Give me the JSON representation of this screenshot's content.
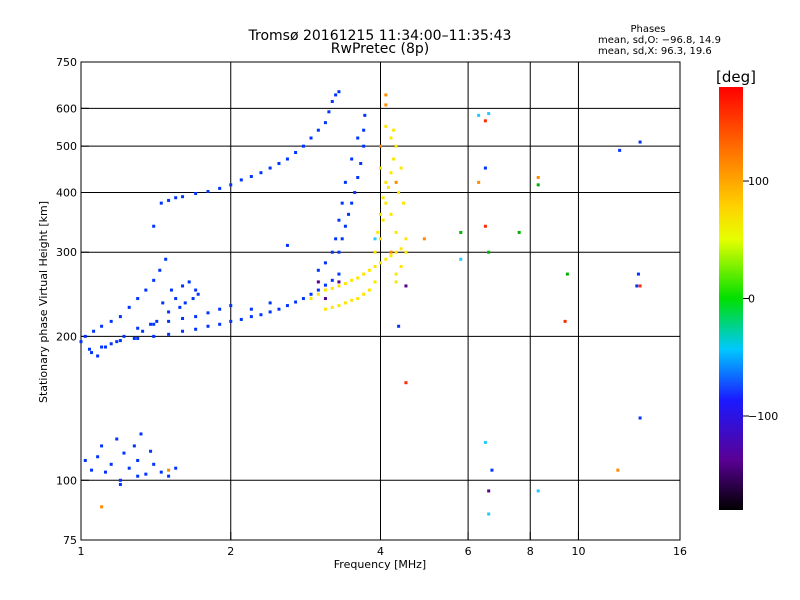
{
  "chart_data": {
    "type": "scatter",
    "title": "Tromsø 20161215 11:34:00–11:35:43",
    "subtitle": "RwPretec (8p)",
    "xlabel": "Frequency [MHz]",
    "ylabel": "Stationary phase Virtual Height [km]",
    "x_scale": "log",
    "y_scale": "log",
    "xlim": [
      1,
      16
    ],
    "ylim": [
      75,
      750
    ],
    "x_ticks": [
      1,
      2,
      4,
      6,
      8,
      10,
      16
    ],
    "x_tick_labels": [
      "1",
      "2",
      "4",
      "6",
      "8",
      "10",
      "16"
    ],
    "x_gridlines": [
      2,
      4,
      6,
      8,
      10
    ],
    "y_ticks": [
      75,
      100,
      200,
      300,
      400,
      500,
      600,
      750
    ],
    "y_tick_labels": [
      "75",
      "100",
      "200",
      "300",
      "400",
      "500",
      "600",
      "750"
    ],
    "y_gridlines": [
      100,
      200,
      300,
      400,
      500,
      600
    ],
    "grid": true,
    "phase_legend": {
      "title": "Phases",
      "line_o": "mean, sd,O: −96.8, 14.9",
      "line_x": "mean, sd,X:  96.3, 19.6"
    },
    "colorbar": {
      "label": "[deg]",
      "range": [
        -180,
        180
      ],
      "ticks": [
        100,
        0,
        -100
      ],
      "tick_labels": [
        "100",
        "0",
        "−100"
      ],
      "colormap": "rainbow (black-purple-blue-cyan-green-yellow-orange-red)"
    },
    "series": [
      {
        "color": "#0033ff",
        "phase_deg": -100,
        "points": [
          [
            1.0,
            195
          ],
          [
            1.02,
            200
          ],
          [
            1.04,
            188
          ],
          [
            1.06,
            205
          ],
          [
            1.08,
            182
          ],
          [
            1.1,
            210
          ],
          [
            1.12,
            190
          ],
          [
            1.15,
            215
          ],
          [
            1.18,
            195
          ],
          [
            1.2,
            220
          ],
          [
            1.22,
            200
          ],
          [
            1.25,
            230
          ],
          [
            1.28,
            198
          ],
          [
            1.3,
            240
          ],
          [
            1.33,
            205
          ],
          [
            1.35,
            250
          ],
          [
            1.38,
            212
          ],
          [
            1.4,
            262
          ],
          [
            1.42,
            215
          ],
          [
            1.44,
            275
          ],
          [
            1.46,
            235
          ],
          [
            1.48,
            290
          ],
          [
            1.5,
            225
          ],
          [
            1.52,
            250
          ],
          [
            1.55,
            240
          ],
          [
            1.58,
            230
          ],
          [
            1.6,
            255
          ],
          [
            1.62,
            235
          ],
          [
            1.65,
            260
          ],
          [
            1.68,
            240
          ],
          [
            1.7,
            250
          ],
          [
            1.72,
            245
          ],
          [
            1.05,
            185
          ],
          [
            1.1,
            190
          ],
          [
            1.15,
            193
          ],
          [
            1.2,
            196
          ],
          [
            1.3,
            198
          ],
          [
            1.4,
            200
          ],
          [
            1.5,
            202
          ],
          [
            1.6,
            205
          ],
          [
            1.7,
            207
          ],
          [
            1.8,
            210
          ],
          [
            1.9,
            212
          ],
          [
            2.0,
            215
          ],
          [
            2.1,
            217
          ],
          [
            2.2,
            220
          ],
          [
            2.3,
            222
          ],
          [
            2.4,
            225
          ],
          [
            2.5,
            228
          ],
          [
            2.6,
            232
          ],
          [
            2.7,
            236
          ],
          [
            2.8,
            240
          ],
          [
            2.9,
            245
          ],
          [
            3.0,
            250
          ],
          [
            3.1,
            256
          ],
          [
            3.2,
            262
          ],
          [
            3.3,
            270
          ],
          [
            1.3,
            208
          ],
          [
            1.4,
            212
          ],
          [
            1.5,
            215
          ],
          [
            1.6,
            218
          ],
          [
            1.7,
            220
          ],
          [
            1.8,
            224
          ],
          [
            1.9,
            228
          ],
          [
            2.0,
            232
          ],
          [
            2.2,
            228
          ],
          [
            2.4,
            235
          ],
          [
            1.45,
            380
          ],
          [
            1.5,
            385
          ],
          [
            1.55,
            390
          ],
          [
            1.6,
            392
          ],
          [
            1.7,
            398
          ],
          [
            1.8,
            402
          ],
          [
            1.9,
            408
          ],
          [
            2.0,
            415
          ],
          [
            2.1,
            425
          ],
          [
            2.2,
            432
          ],
          [
            2.3,
            440
          ],
          [
            2.4,
            450
          ],
          [
            2.5,
            460
          ],
          [
            2.6,
            470
          ],
          [
            2.7,
            485
          ],
          [
            2.8,
            500
          ],
          [
            2.9,
            520
          ],
          [
            3.0,
            540
          ],
          [
            3.1,
            560
          ],
          [
            3.15,
            590
          ],
          [
            3.2,
            620
          ],
          [
            3.25,
            640
          ],
          [
            3.3,
            650
          ],
          [
            3.3,
            300
          ],
          [
            3.35,
            320
          ],
          [
            3.4,
            340
          ],
          [
            3.45,
            360
          ],
          [
            3.5,
            380
          ],
          [
            3.55,
            400
          ],
          [
            3.6,
            430
          ],
          [
            3.65,
            460
          ],
          [
            3.7,
            500
          ],
          [
            3.7,
            540
          ],
          [
            3.72,
            580
          ],
          [
            3.6,
            520
          ],
          [
            3.5,
            470
          ],
          [
            3.4,
            420
          ],
          [
            3.35,
            380
          ],
          [
            3.3,
            350
          ],
          [
            3.25,
            320
          ],
          [
            3.2,
            300
          ],
          [
            3.1,
            285
          ],
          [
            3.0,
            275
          ],
          [
            1.02,
            110
          ],
          [
            1.05,
            105
          ],
          [
            1.08,
            112
          ],
          [
            1.1,
            118
          ],
          [
            1.12,
            104
          ],
          [
            1.15,
            108
          ],
          [
            1.18,
            122
          ],
          [
            1.2,
            100
          ],
          [
            1.22,
            114
          ],
          [
            1.25,
            106
          ],
          [
            1.28,
            118
          ],
          [
            1.3,
            110
          ],
          [
            1.32,
            125
          ],
          [
            1.35,
            103
          ],
          [
            1.38,
            115
          ],
          [
            1.4,
            108
          ],
          [
            1.45,
            104
          ],
          [
            1.5,
            102
          ],
          [
            1.55,
            106
          ],
          [
            1.3,
            102
          ],
          [
            1.2,
            98
          ],
          [
            1.4,
            340
          ],
          [
            2.6,
            310
          ],
          [
            12.1,
            490
          ],
          [
            13.3,
            510
          ],
          [
            13.2,
            270
          ],
          [
            13.3,
            135
          ],
          [
            6.7,
            105
          ],
          [
            6.5,
            450
          ],
          [
            13.1,
            255
          ],
          [
            4.35,
            210
          ]
        ]
      },
      {
        "color": "#ffe600",
        "phase_deg": 110,
        "points": [
          [
            2.9,
            240
          ],
          [
            3.0,
            245
          ],
          [
            3.1,
            250
          ],
          [
            3.2,
            252
          ],
          [
            3.3,
            255
          ],
          [
            3.4,
            258
          ],
          [
            3.5,
            262
          ],
          [
            3.6,
            265
          ],
          [
            3.7,
            270
          ],
          [
            3.8,
            275
          ],
          [
            3.9,
            280
          ],
          [
            4.0,
            285
          ],
          [
            4.1,
            290
          ],
          [
            4.2,
            295
          ],
          [
            4.3,
            300
          ],
          [
            4.4,
            305
          ],
          [
            4.0,
            320
          ],
          [
            4.05,
            350
          ],
          [
            4.1,
            380
          ],
          [
            4.15,
            410
          ],
          [
            4.2,
            440
          ],
          [
            4.25,
            470
          ],
          [
            4.3,
            500
          ],
          [
            4.2,
            360
          ],
          [
            4.3,
            330
          ],
          [
            4.35,
            400
          ],
          [
            4.4,
            450
          ],
          [
            4.45,
            380
          ],
          [
            4.5,
            320
          ],
          [
            4.5,
            300
          ],
          [
            4.4,
            280
          ],
          [
            4.3,
            270
          ],
          [
            3.9,
            300
          ],
          [
            3.95,
            330
          ],
          [
            4.0,
            360
          ],
          [
            4.05,
            390
          ],
          [
            4.1,
            420
          ],
          [
            3.9,
            260
          ],
          [
            3.8,
            250
          ],
          [
            3.7,
            245
          ],
          [
            3.6,
            240
          ],
          [
            3.5,
            238
          ],
          [
            3.4,
            235
          ],
          [
            3.3,
            232
          ],
          [
            3.2,
            230
          ],
          [
            3.1,
            228
          ],
          [
            4.2,
            520
          ],
          [
            4.25,
            540
          ],
          [
            4.1,
            550
          ],
          [
            4.0,
            450
          ],
          [
            4.3,
            260
          ]
        ]
      },
      {
        "color": "#ff8a00",
        "phase_deg": 150,
        "points": [
          [
            4.1,
            640
          ],
          [
            4.1,
            610
          ],
          [
            4.0,
            500
          ],
          [
            4.2,
            300
          ],
          [
            4.3,
            420
          ],
          [
            8.3,
            430
          ],
          [
            6.3,
            420
          ],
          [
            12.0,
            105
          ],
          [
            4.9,
            320
          ],
          [
            1.1,
            88
          ],
          [
            1.5,
            105
          ]
        ]
      },
      {
        "color": "#ff2a00",
        "phase_deg": 175,
        "points": [
          [
            6.5,
            565
          ],
          [
            6.5,
            340
          ],
          [
            4.5,
            160
          ],
          [
            9.4,
            215
          ],
          [
            13.3,
            255
          ]
        ]
      },
      {
        "color": "#00b000",
        "phase_deg": 20,
        "points": [
          [
            8.3,
            415
          ],
          [
            9.5,
            270
          ],
          [
            6.6,
            300
          ],
          [
            7.6,
            330
          ],
          [
            5.8,
            330
          ]
        ]
      },
      {
        "color": "#22c8ff",
        "phase_deg": -40,
        "points": [
          [
            6.6,
            85
          ],
          [
            8.3,
            95
          ],
          [
            6.5,
            120
          ],
          [
            6.3,
            580
          ],
          [
            6.6,
            585
          ],
          [
            3.9,
            320
          ],
          [
            5.8,
            290
          ]
        ]
      },
      {
        "color": "#550088",
        "phase_deg": -140,
        "points": [
          [
            4.5,
            255
          ],
          [
            3.1,
            240
          ],
          [
            3.3,
            260
          ],
          [
            6.6,
            95
          ],
          [
            3.0,
            260
          ]
        ]
      }
    ]
  }
}
